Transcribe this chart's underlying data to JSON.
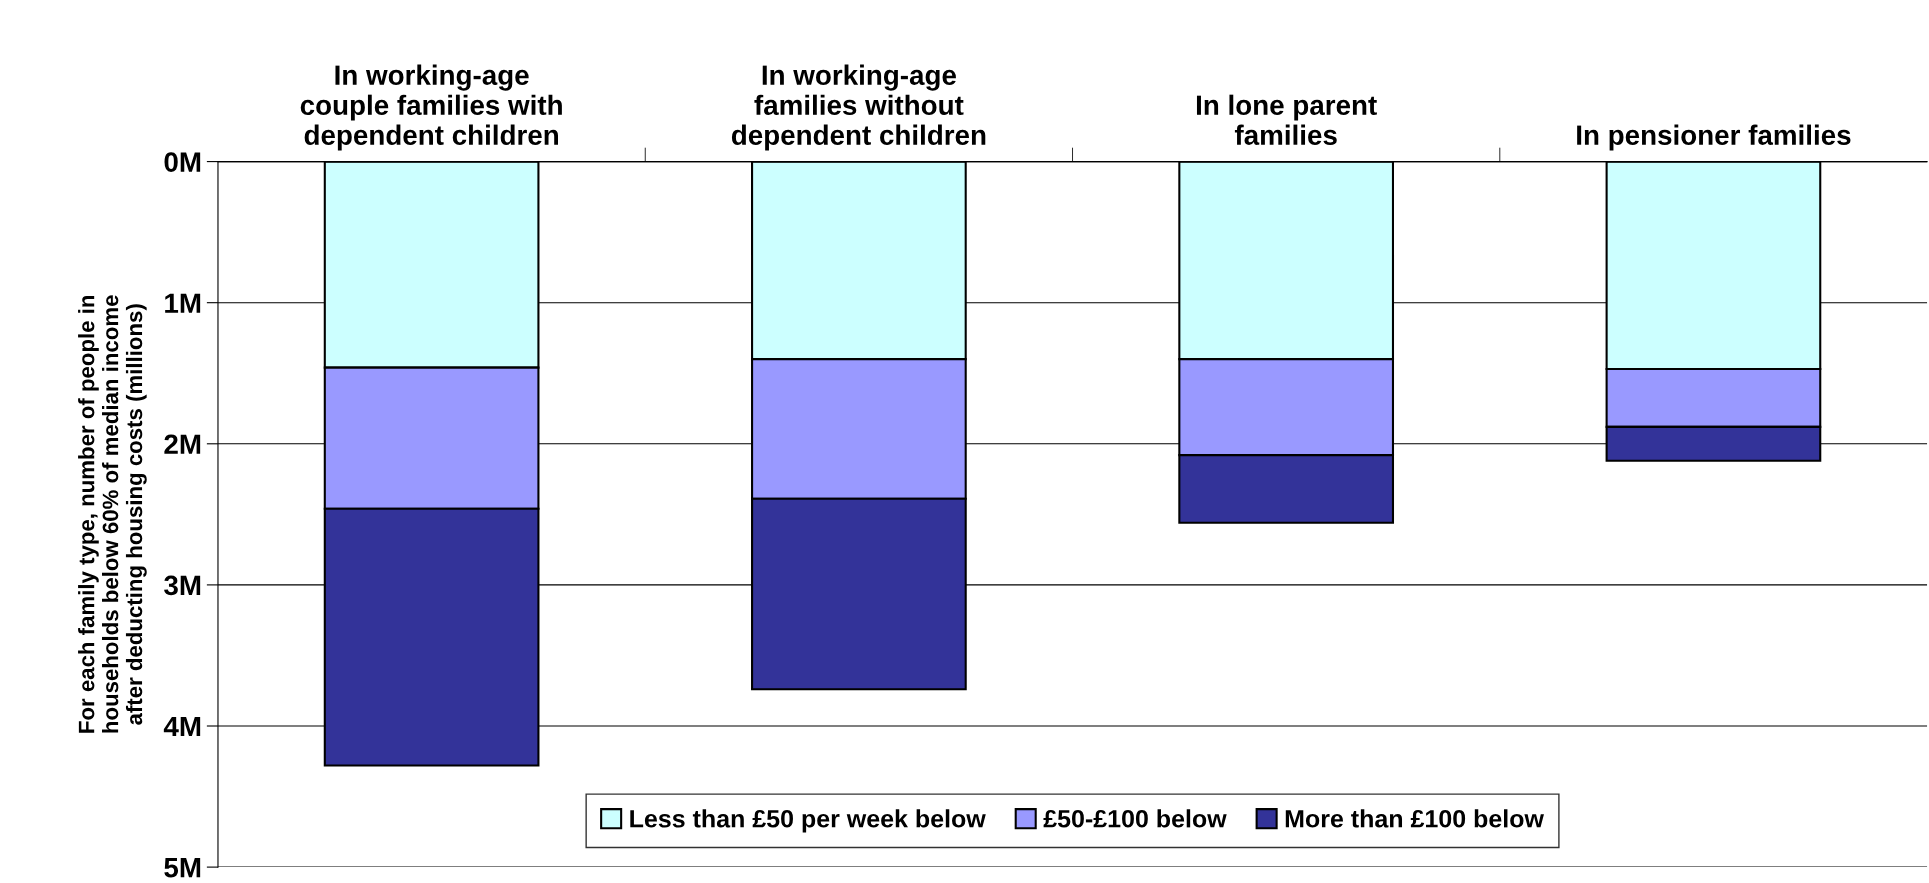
{
  "chart_data": {
    "type": "bar",
    "stacked": true,
    "categories": [
      "In working-age\ncouple families with\ndependent children",
      "In working-age\nfamilies without\ndependent children",
      "In lone parent\nfamilies",
      "In pensioner families"
    ],
    "ylabel": "For each family type, number of people in\nhouseholds below 60% of median income\nafter deducting housing costs (millions)",
    "series": [
      {
        "name": "Less than £50 per week below",
        "color": "#ccffff",
        "values": [
          1.46,
          1.4,
          1.4,
          1.47
        ]
      },
      {
        "name": "£50-£100 below",
        "color": "#9999ff",
        "values": [
          1.0,
          0.99,
          0.68,
          0.41
        ]
      },
      {
        "name": "More than £100 below",
        "color": "#333399",
        "values": [
          1.82,
          1.35,
          0.48,
          0.24
        ]
      }
    ],
    "ylim": [
      5,
      0
    ],
    "yticks": [
      {
        "value": 0,
        "label": "0M"
      },
      {
        "value": 1,
        "label": "1M"
      },
      {
        "value": 2,
        "label": "2M"
      },
      {
        "value": 3,
        "label": "3M"
      },
      {
        "value": 4,
        "label": "4M"
      },
      {
        "value": 5,
        "label": "5M"
      }
    ],
    "grid": "y",
    "legend": "bottom"
  }
}
